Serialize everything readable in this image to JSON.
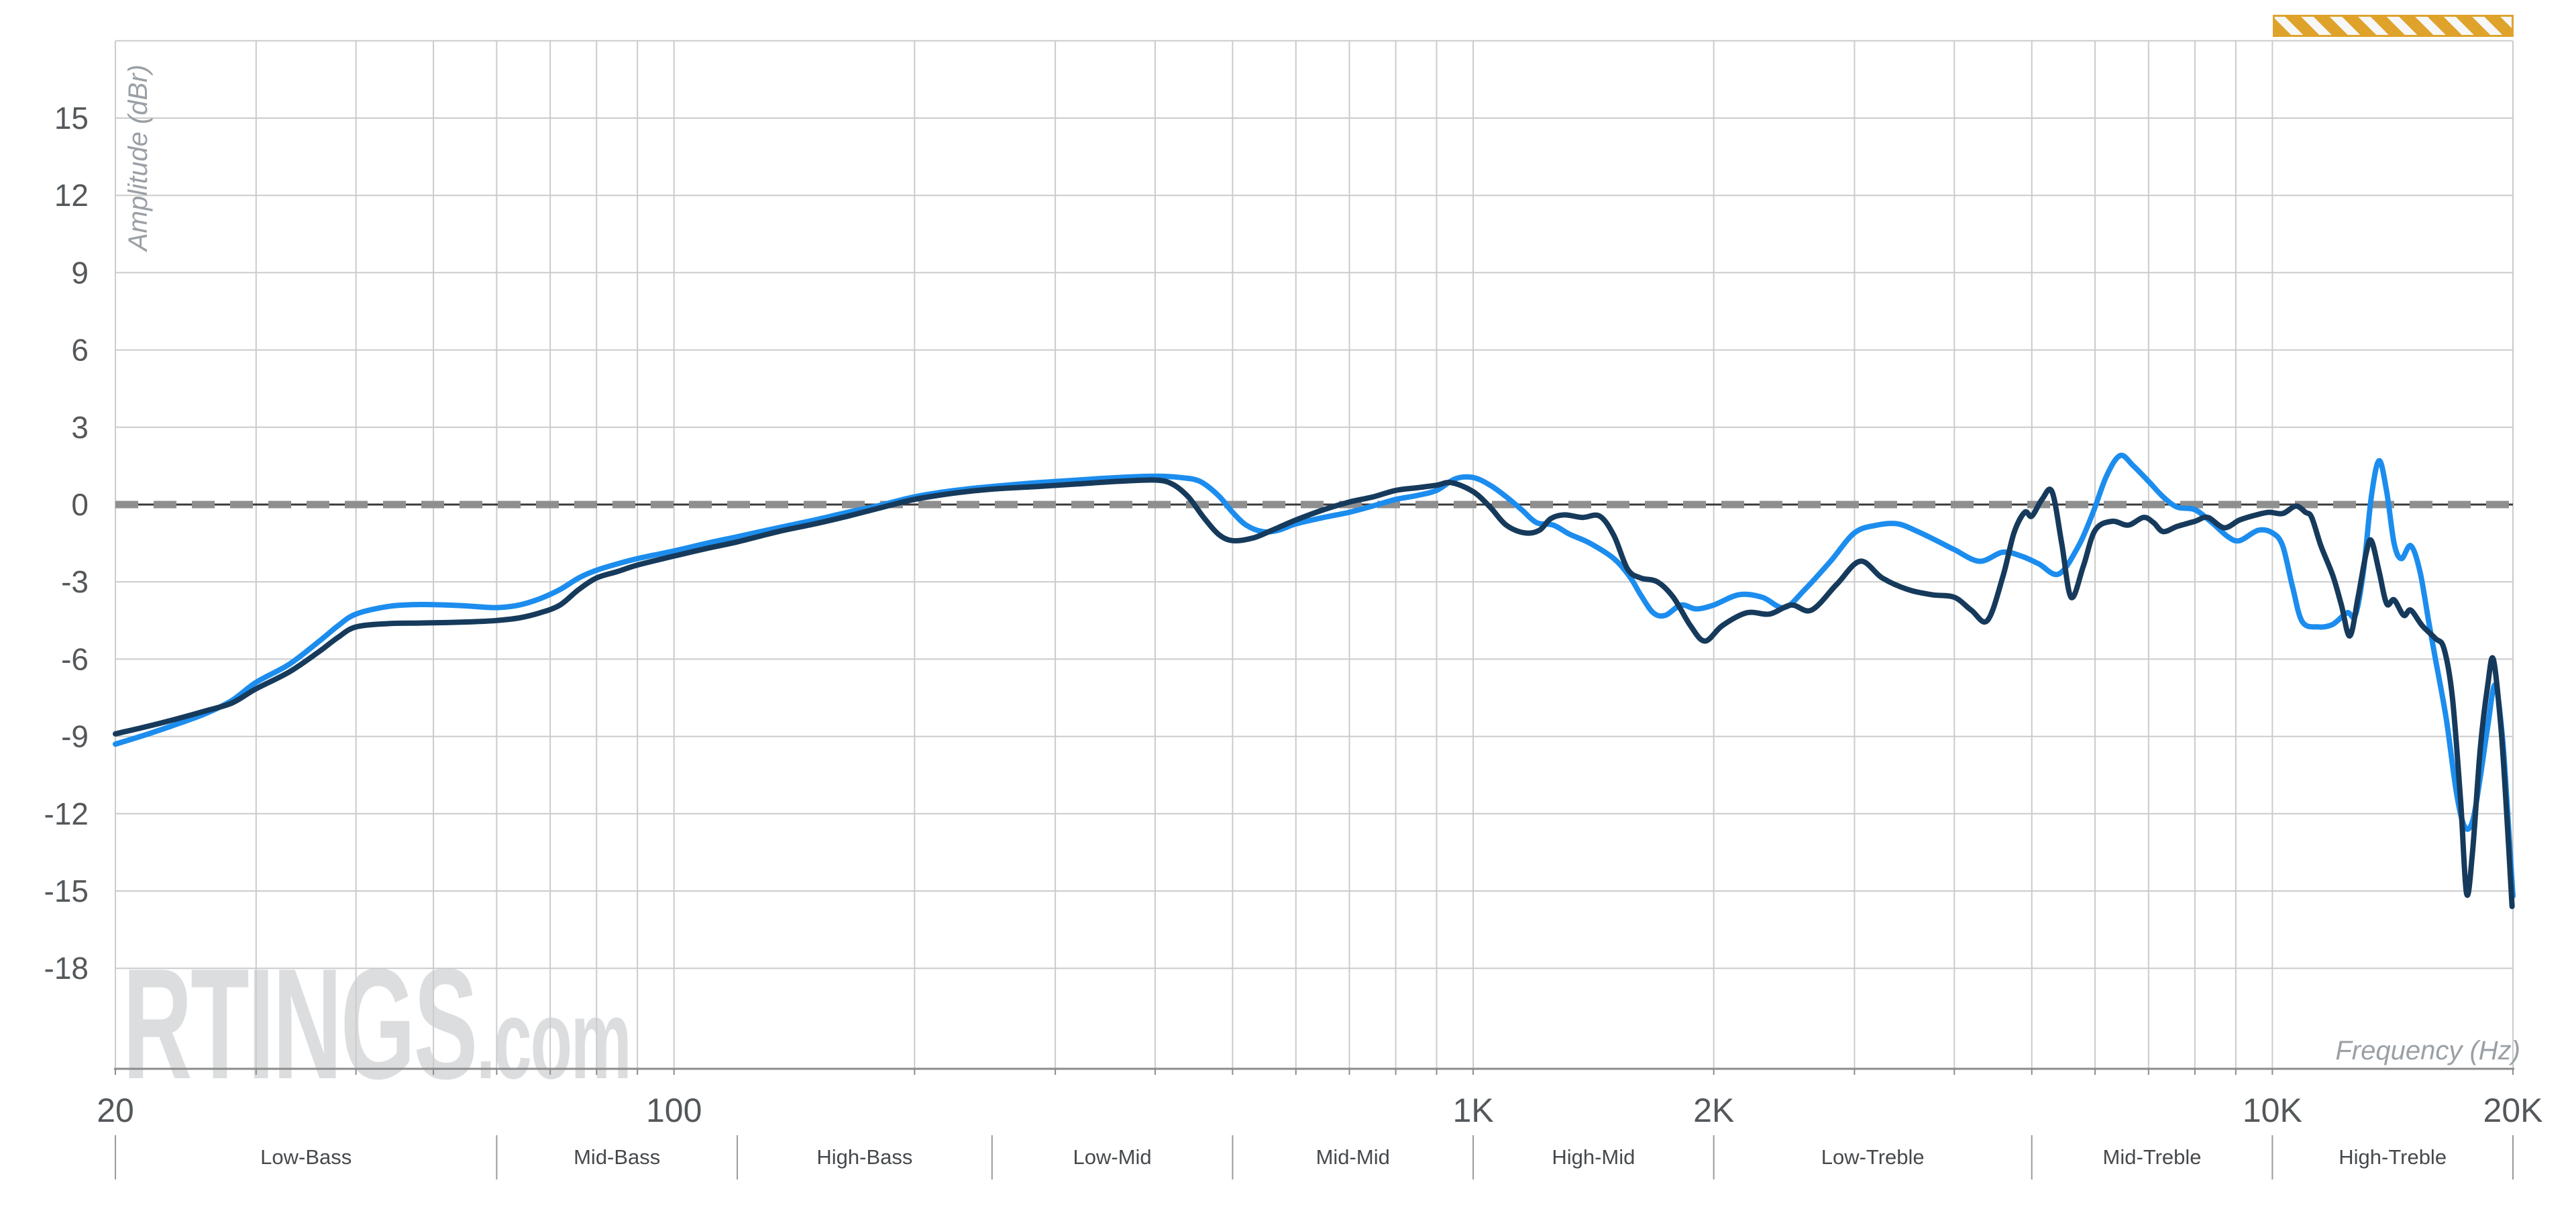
{
  "chart_data": {
    "type": "line",
    "title": "",
    "xlabel": "Frequency (Hz)",
    "ylabel": "Amplitude (dBr)",
    "x_scale": "log",
    "xlim": [
      20,
      20000
    ],
    "ylim": [
      -21.9,
      18
    ],
    "grid": true,
    "legend": "none",
    "zero_reference_line": 0,
    "y_tick_labels": [
      15,
      12,
      9,
      6,
      3,
      0,
      -3,
      -6,
      -9,
      -12,
      -15,
      -18
    ],
    "y_gridlines_db": [
      18,
      15,
      12,
      9,
      6,
      3,
      0,
      -3,
      -6,
      -9,
      -12,
      -15,
      -18
    ],
    "x_gridlines_hz": [
      20,
      30,
      40,
      50,
      60,
      70,
      80,
      90,
      100,
      200,
      300,
      400,
      500,
      600,
      700,
      800,
      900,
      1000,
      2000,
      3000,
      4000,
      5000,
      6000,
      7000,
      8000,
      9000,
      10000,
      20000
    ],
    "x_tick_labels": [
      {
        "f": 20,
        "label": "20"
      },
      {
        "f": 100,
        "label": "100"
      },
      {
        "f": 1000,
        "label": "1K"
      },
      {
        "f": 2000,
        "label": "2K"
      },
      {
        "f": 10000,
        "label": "10K"
      },
      {
        "f": 20000,
        "label": "20K"
      }
    ],
    "bands": {
      "boundaries_hz": [
        20,
        60,
        120,
        250,
        500,
        1000,
        2000,
        5000,
        10000,
        20000
      ],
      "labels": [
        "Low-Bass",
        "Mid-Bass",
        "High-Bass",
        "Low-Mid",
        "Mid-Mid",
        "High-Mid",
        "Low-Treble",
        "Mid-Treble",
        "High-Treble"
      ]
    },
    "series": [
      {
        "name": "light-blue-curve",
        "color": "#1c8dee",
        "points": [
          [
            20,
            -9.3
          ],
          [
            22,
            -8.9
          ],
          [
            24,
            -8.5
          ],
          [
            26,
            -8.1
          ],
          [
            28,
            -7.6
          ],
          [
            30,
            -6.9
          ],
          [
            33,
            -6.2
          ],
          [
            36,
            -5.3
          ],
          [
            38,
            -4.7
          ],
          [
            40,
            -4.25
          ],
          [
            44,
            -3.95
          ],
          [
            48,
            -3.88
          ],
          [
            52,
            -3.9
          ],
          [
            56,
            -3.95
          ],
          [
            60,
            -4.0
          ],
          [
            64,
            -3.9
          ],
          [
            68,
            -3.65
          ],
          [
            72,
            -3.3
          ],
          [
            76,
            -2.85
          ],
          [
            80,
            -2.55
          ],
          [
            85,
            -2.3
          ],
          [
            90,
            -2.1
          ],
          [
            100,
            -1.8
          ],
          [
            110,
            -1.5
          ],
          [
            120,
            -1.25
          ],
          [
            135,
            -0.9
          ],
          [
            150,
            -0.6
          ],
          [
            165,
            -0.3
          ],
          [
            180,
            -0.05
          ],
          [
            200,
            0.3
          ],
          [
            225,
            0.55
          ],
          [
            250,
            0.7
          ],
          [
            285,
            0.85
          ],
          [
            320,
            0.95
          ],
          [
            360,
            1.05
          ],
          [
            400,
            1.1
          ],
          [
            430,
            1.05
          ],
          [
            455,
            0.9
          ],
          [
            480,
            0.35
          ],
          [
            500,
            -0.3
          ],
          [
            520,
            -0.8
          ],
          [
            545,
            -1.05
          ],
          [
            570,
            -1.0
          ],
          [
            600,
            -0.75
          ],
          [
            650,
            -0.5
          ],
          [
            700,
            -0.3
          ],
          [
            750,
            -0.05
          ],
          [
            800,
            0.2
          ],
          [
            850,
            0.35
          ],
          [
            900,
            0.55
          ],
          [
            950,
            1.0
          ],
          [
            1000,
            1.05
          ],
          [
            1050,
            0.75
          ],
          [
            1100,
            0.3
          ],
          [
            1150,
            -0.2
          ],
          [
            1200,
            -0.7
          ],
          [
            1260,
            -0.8
          ],
          [
            1320,
            -1.15
          ],
          [
            1400,
            -1.5
          ],
          [
            1500,
            -2.1
          ],
          [
            1570,
            -2.8
          ],
          [
            1620,
            -3.5
          ],
          [
            1680,
            -4.2
          ],
          [
            1740,
            -4.3
          ],
          [
            1820,
            -3.9
          ],
          [
            1900,
            -4.05
          ],
          [
            2000,
            -3.9
          ],
          [
            2150,
            -3.5
          ],
          [
            2300,
            -3.6
          ],
          [
            2450,
            -4.0
          ],
          [
            2600,
            -3.3
          ],
          [
            2800,
            -2.2
          ],
          [
            3000,
            -1.1
          ],
          [
            3200,
            -0.8
          ],
          [
            3400,
            -0.75
          ],
          [
            3600,
            -1.05
          ],
          [
            3800,
            -1.4
          ],
          [
            4000,
            -1.75
          ],
          [
            4300,
            -2.2
          ],
          [
            4600,
            -1.85
          ],
          [
            4850,
            -2.0
          ],
          [
            5100,
            -2.3
          ],
          [
            5400,
            -2.7
          ],
          [
            5700,
            -1.7
          ],
          [
            5950,
            -0.4
          ],
          [
            6200,
            1.1
          ],
          [
            6450,
            1.9
          ],
          [
            6700,
            1.5
          ],
          [
            7000,
            0.9
          ],
          [
            7300,
            0.3
          ],
          [
            7600,
            -0.1
          ],
          [
            8000,
            -0.2
          ],
          [
            8400,
            -0.7
          ],
          [
            8800,
            -1.25
          ],
          [
            9100,
            -1.4
          ],
          [
            9600,
            -1.0
          ],
          [
            10000,
            -1.1
          ],
          [
            10300,
            -1.6
          ],
          [
            10600,
            -3.2
          ],
          [
            10900,
            -4.55
          ],
          [
            11400,
            -4.75
          ],
          [
            11900,
            -4.65
          ],
          [
            12400,
            -4.2
          ],
          [
            12700,
            -4.3
          ],
          [
            13000,
            -2.6
          ],
          [
            13300,
            0.3
          ],
          [
            13600,
            1.7
          ],
          [
            13900,
            0.5
          ],
          [
            14200,
            -1.5
          ],
          [
            14500,
            -2.1
          ],
          [
            14900,
            -1.6
          ],
          [
            15300,
            -2.6
          ],
          [
            15700,
            -4.6
          ],
          [
            16000,
            -6.0
          ],
          [
            16500,
            -8.3
          ],
          [
            17000,
            -11.2
          ],
          [
            17400,
            -12.5
          ],
          [
            17800,
            -12.3
          ],
          [
            18200,
            -10.6
          ],
          [
            18600,
            -8.6
          ],
          [
            19000,
            -7.0
          ],
          [
            19400,
            -9.0
          ],
          [
            19700,
            -12.0
          ],
          [
            20000,
            -15.2
          ]
        ]
      },
      {
        "name": "dark-blue-curve",
        "color": "#163a5b",
        "points": [
          [
            20,
            -8.9
          ],
          [
            22,
            -8.6
          ],
          [
            24,
            -8.3
          ],
          [
            26,
            -8.0
          ],
          [
            28,
            -7.7
          ],
          [
            30,
            -7.15
          ],
          [
            33,
            -6.5
          ],
          [
            36,
            -5.7
          ],
          [
            38,
            -5.15
          ],
          [
            40,
            -4.75
          ],
          [
            44,
            -4.62
          ],
          [
            48,
            -4.6
          ],
          [
            52,
            -4.58
          ],
          [
            56,
            -4.55
          ],
          [
            60,
            -4.5
          ],
          [
            64,
            -4.4
          ],
          [
            68,
            -4.2
          ],
          [
            72,
            -3.9
          ],
          [
            76,
            -3.3
          ],
          [
            80,
            -2.85
          ],
          [
            85,
            -2.6
          ],
          [
            90,
            -2.35
          ],
          [
            100,
            -2.0
          ],
          [
            110,
            -1.7
          ],
          [
            120,
            -1.45
          ],
          [
            135,
            -1.05
          ],
          [
            150,
            -0.75
          ],
          [
            165,
            -0.45
          ],
          [
            180,
            -0.15
          ],
          [
            200,
            0.2
          ],
          [
            225,
            0.45
          ],
          [
            250,
            0.6
          ],
          [
            285,
            0.7
          ],
          [
            320,
            0.8
          ],
          [
            360,
            0.9
          ],
          [
            400,
            0.95
          ],
          [
            420,
            0.8
          ],
          [
            440,
            0.3
          ],
          [
            460,
            -0.5
          ],
          [
            480,
            -1.15
          ],
          [
            500,
            -1.4
          ],
          [
            530,
            -1.3
          ],
          [
            560,
            -1.0
          ],
          [
            600,
            -0.6
          ],
          [
            650,
            -0.2
          ],
          [
            700,
            0.1
          ],
          [
            750,
            0.3
          ],
          [
            800,
            0.55
          ],
          [
            850,
            0.65
          ],
          [
            900,
            0.75
          ],
          [
            940,
            0.85
          ],
          [
            1000,
            0.5
          ],
          [
            1050,
            -0.1
          ],
          [
            1100,
            -0.8
          ],
          [
            1160,
            -1.1
          ],
          [
            1210,
            -1.0
          ],
          [
            1250,
            -0.55
          ],
          [
            1300,
            -0.4
          ],
          [
            1370,
            -0.5
          ],
          [
            1440,
            -0.45
          ],
          [
            1500,
            -1.2
          ],
          [
            1560,
            -2.5
          ],
          [
            1620,
            -2.85
          ],
          [
            1700,
            -3.0
          ],
          [
            1780,
            -3.6
          ],
          [
            1870,
            -4.7
          ],
          [
            1950,
            -5.3
          ],
          [
            2050,
            -4.7
          ],
          [
            2200,
            -4.2
          ],
          [
            2350,
            -4.25
          ],
          [
            2500,
            -3.9
          ],
          [
            2650,
            -4.1
          ],
          [
            2850,
            -3.1
          ],
          [
            3050,
            -2.2
          ],
          [
            3250,
            -2.85
          ],
          [
            3500,
            -3.3
          ],
          [
            3750,
            -3.5
          ],
          [
            4000,
            -3.6
          ],
          [
            4200,
            -4.1
          ],
          [
            4400,
            -4.5
          ],
          [
            4600,
            -2.8
          ],
          [
            4750,
            -1.1
          ],
          [
            4900,
            -0.3
          ],
          [
            5000,
            -0.45
          ],
          [
            5150,
            0.2
          ],
          [
            5300,
            0.5
          ],
          [
            5450,
            -1.5
          ],
          [
            5600,
            -3.6
          ],
          [
            5800,
            -2.4
          ],
          [
            6000,
            -1.0
          ],
          [
            6300,
            -0.65
          ],
          [
            6600,
            -0.8
          ],
          [
            6900,
            -0.5
          ],
          [
            7100,
            -0.7
          ],
          [
            7300,
            -1.05
          ],
          [
            7600,
            -0.85
          ],
          [
            8000,
            -0.65
          ],
          [
            8300,
            -0.5
          ],
          [
            8700,
            -0.9
          ],
          [
            9100,
            -0.6
          ],
          [
            9500,
            -0.42
          ],
          [
            9900,
            -0.3
          ],
          [
            10300,
            -0.35
          ],
          [
            10700,
            -0.06
          ],
          [
            11000,
            -0.3
          ],
          [
            11200,
            -0.5
          ],
          [
            11500,
            -1.6
          ],
          [
            11900,
            -2.75
          ],
          [
            12200,
            -3.9
          ],
          [
            12500,
            -5.1
          ],
          [
            12800,
            -3.6
          ],
          [
            13100,
            -1.9
          ],
          [
            13300,
            -1.4
          ],
          [
            13600,
            -2.6
          ],
          [
            13900,
            -3.85
          ],
          [
            14200,
            -3.7
          ],
          [
            14600,
            -4.3
          ],
          [
            14900,
            -4.1
          ],
          [
            15400,
            -4.7
          ],
          [
            16000,
            -5.2
          ],
          [
            16400,
            -5.6
          ],
          [
            16800,
            -7.5
          ],
          [
            17200,
            -11.5
          ],
          [
            17500,
            -15.1
          ],
          [
            17800,
            -13.5
          ],
          [
            18200,
            -9.5
          ],
          [
            18600,
            -7.0
          ],
          [
            18900,
            -6.0
          ],
          [
            19300,
            -8.5
          ],
          [
            19600,
            -11.5
          ],
          [
            19950,
            -15.6
          ]
        ]
      }
    ]
  },
  "watermark": {
    "main": "RTINGS",
    "suffix": ".com"
  },
  "decorations": {
    "hatch_bar_color": "#dfa32c"
  },
  "colors": {
    "grid": "#cbcbcb",
    "axis": "#8c8c8c",
    "tick_text": "#54585b",
    "band_text": "#46494c",
    "zero_dash": "#8f8f8f",
    "zero_base": "#3a3a3a",
    "axis_title": "#9aa0a5",
    "watermark": "#dbdddf"
  }
}
